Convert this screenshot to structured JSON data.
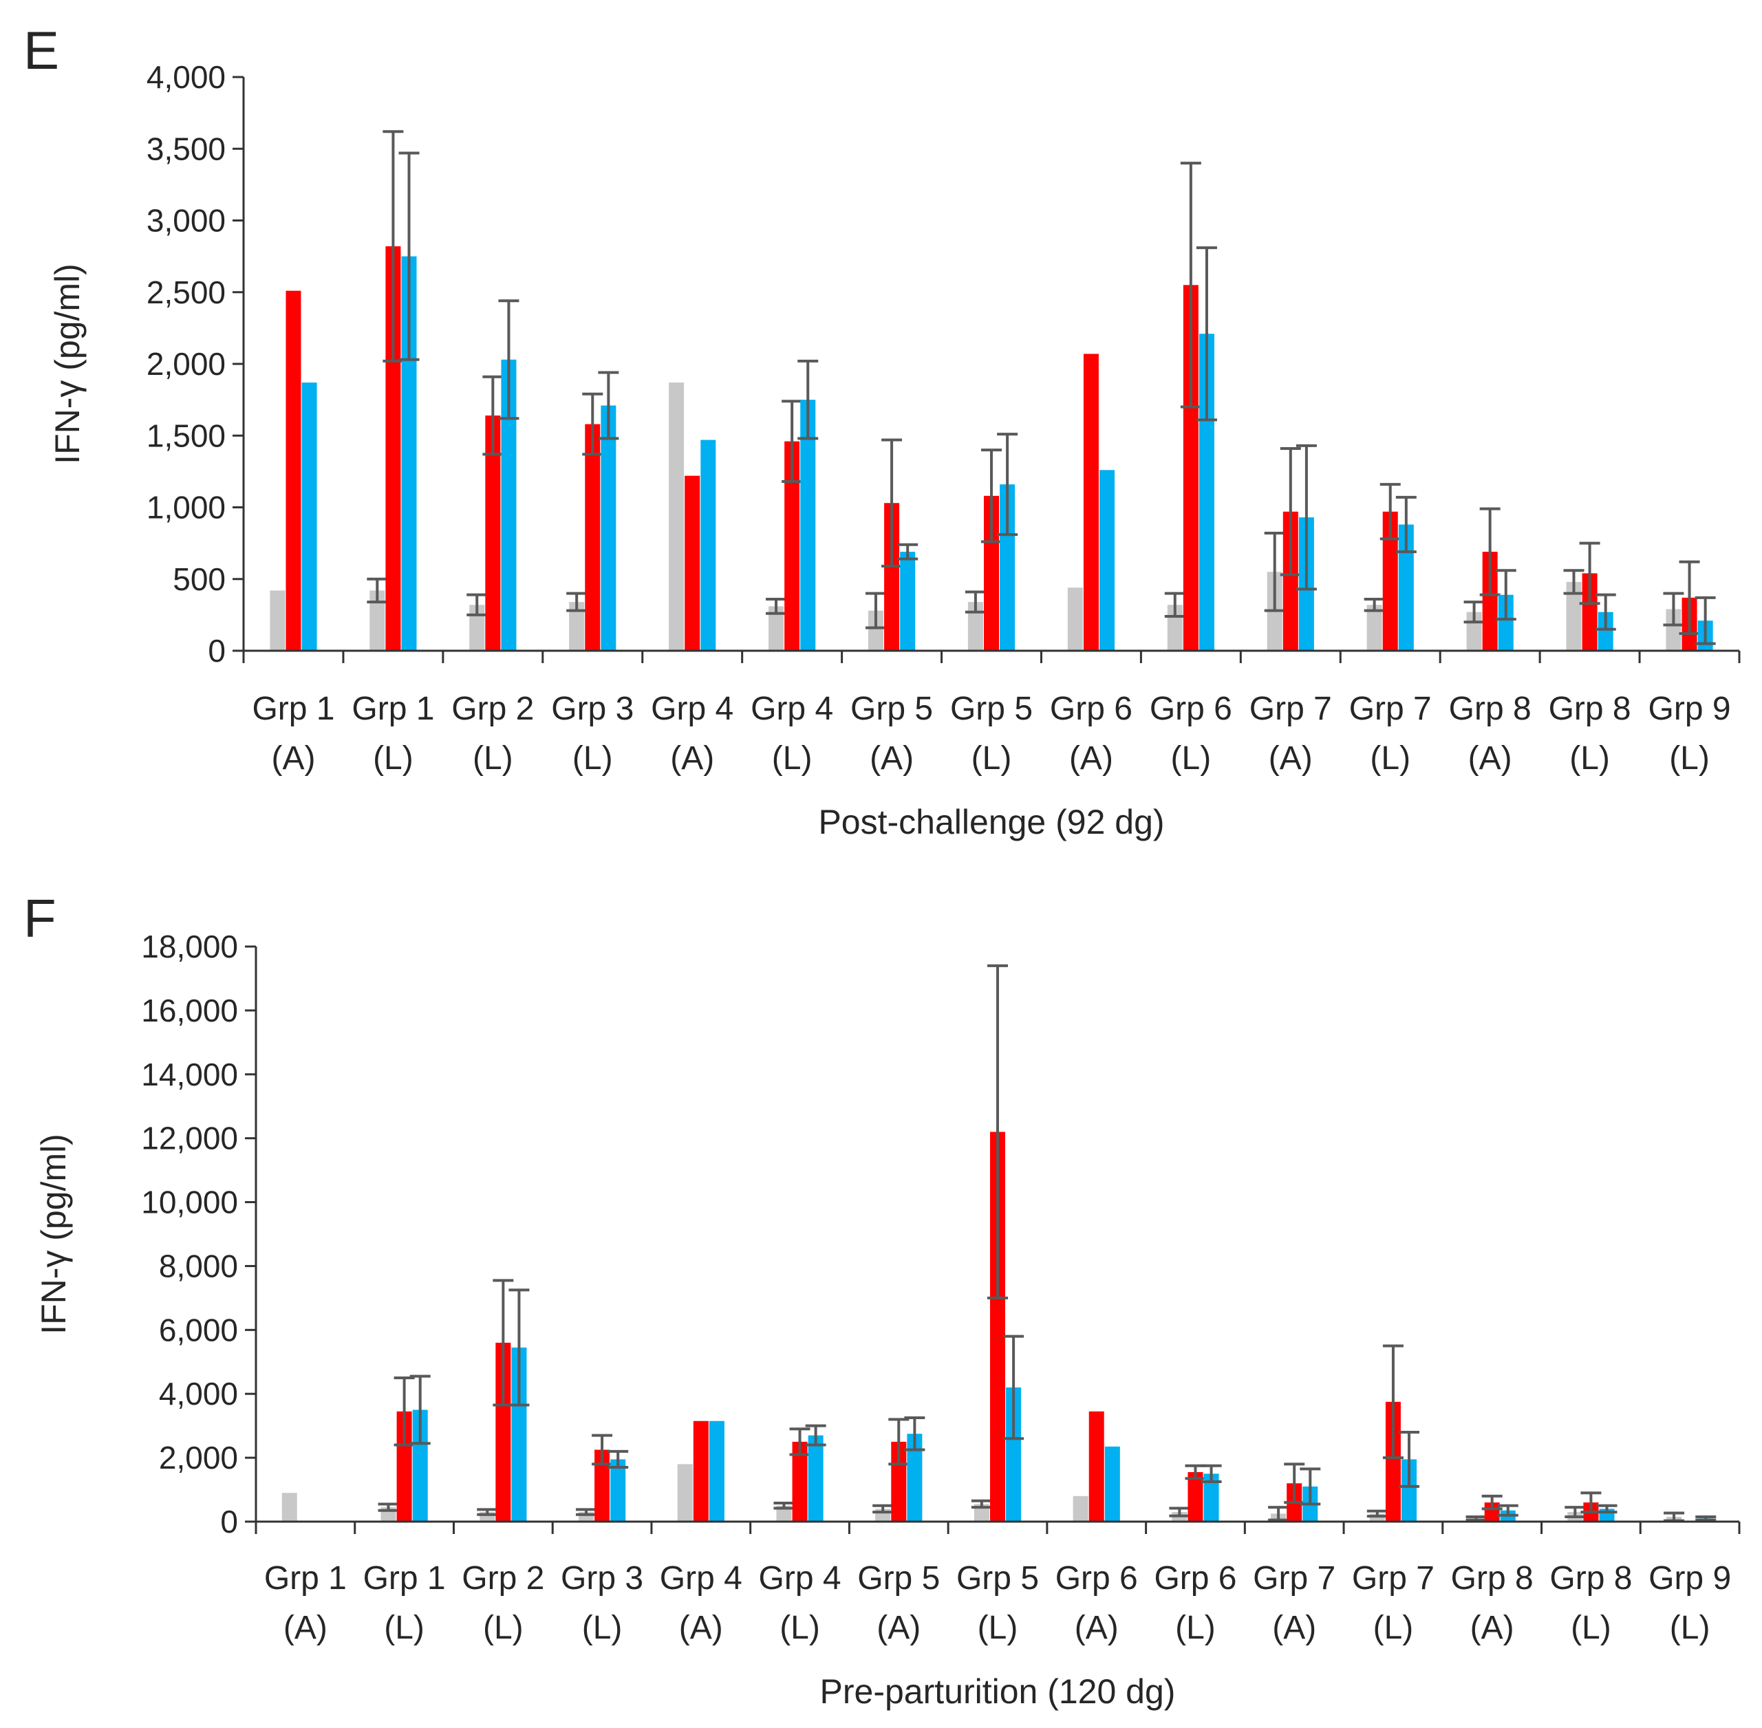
{
  "colors": {
    "gray": "#c8c8c8",
    "red": "#ff0000",
    "blue": "#00b0f0",
    "axis": "#333333",
    "err": "#595959"
  },
  "chart_data": [
    {
      "panel": "E",
      "type": "bar",
      "title": "",
      "xlabel": "Post-challenge (92 dg)",
      "ylabel": "IFN-γ (pg/ml)",
      "ylim": [
        0,
        4000
      ],
      "yticks": [
        0,
        500,
        1000,
        1500,
        2000,
        2500,
        3000,
        3500,
        4000
      ],
      "ytick_labels": [
        "0",
        "500",
        "1,000",
        "1,500",
        "2,000",
        "2,500",
        "3,000",
        "3,500",
        "4,000"
      ],
      "categories": [
        {
          "grp": "Grp 1",
          "sub": "(A)"
        },
        {
          "grp": "Grp 1",
          "sub": "(L)"
        },
        {
          "grp": "Grp 2",
          "sub": "(L)"
        },
        {
          "grp": "Grp 3",
          "sub": "(L)"
        },
        {
          "grp": "Grp 4",
          "sub": "(A)"
        },
        {
          "grp": "Grp 4",
          "sub": "(L)"
        },
        {
          "grp": "Grp 5",
          "sub": "(A)"
        },
        {
          "grp": "Grp 5",
          "sub": "(L)"
        },
        {
          "grp": "Grp 6",
          "sub": "(A)"
        },
        {
          "grp": "Grp 6",
          "sub": "(L)"
        },
        {
          "grp": "Grp 7",
          "sub": "(A)"
        },
        {
          "grp": "Grp 7",
          "sub": "(L)"
        },
        {
          "grp": "Grp 8",
          "sub": "(A)"
        },
        {
          "grp": "Grp 8",
          "sub": "(L)"
        },
        {
          "grp": "Grp 9",
          "sub": "(L)"
        }
      ],
      "series": [
        {
          "name": "gray",
          "color": "#c8c8c8",
          "values": [
            420,
            420,
            320,
            340,
            1870,
            310,
            280,
            340,
            440,
            320,
            550,
            320,
            270,
            480,
            290
          ],
          "errors": [
            null,
            80,
            70,
            60,
            null,
            50,
            120,
            70,
            null,
            80,
            270,
            40,
            70,
            80,
            110
          ]
        },
        {
          "name": "red",
          "color": "#ff0000",
          "values": [
            2510,
            2820,
            1640,
            1580,
            1220,
            1460,
            1030,
            1080,
            2070,
            2550,
            970,
            970,
            690,
            540,
            370
          ],
          "errors": [
            null,
            800,
            270,
            210,
            null,
            280,
            440,
            320,
            null,
            850,
            440,
            190,
            300,
            210,
            250
          ]
        },
        {
          "name": "blue",
          "color": "#00b0f0",
          "values": [
            1870,
            2750,
            2030,
            1710,
            1470,
            1750,
            690,
            1160,
            1260,
            2210,
            930,
            880,
            390,
            270,
            210
          ],
          "errors": [
            null,
            720,
            410,
            230,
            null,
            270,
            50,
            350,
            null,
            600,
            500,
            190,
            170,
            120,
            160
          ]
        }
      ]
    },
    {
      "panel": "F",
      "type": "bar",
      "title": "",
      "xlabel": "Pre-parturition (120 dg)",
      "ylabel": "IFN-γ (pg/ml)",
      "ylim": [
        0,
        18000
      ],
      "yticks": [
        0,
        2000,
        4000,
        6000,
        8000,
        10000,
        12000,
        14000,
        16000,
        18000
      ],
      "ytick_labels": [
        "0",
        "2,000",
        "4,000",
        "6,000",
        "8,000",
        "10,000",
        "12,000",
        "14,000",
        "16,000",
        "18,000"
      ],
      "categories": [
        {
          "grp": "Grp 1",
          "sub": "(A)"
        },
        {
          "grp": "Grp 1",
          "sub": "(L)"
        },
        {
          "grp": "Grp 2",
          "sub": "(L)"
        },
        {
          "grp": "Grp 3",
          "sub": "(L)"
        },
        {
          "grp": "Grp 4",
          "sub": "(A)"
        },
        {
          "grp": "Grp 4",
          "sub": "(L)"
        },
        {
          "grp": "Grp 5",
          "sub": "(A)"
        },
        {
          "grp": "Grp 5",
          "sub": "(L)"
        },
        {
          "grp": "Grp 6",
          "sub": "(A)"
        },
        {
          "grp": "Grp 6",
          "sub": "(L)"
        },
        {
          "grp": "Grp 7",
          "sub": "(A)"
        },
        {
          "grp": "Grp 7",
          "sub": "(L)"
        },
        {
          "grp": "Grp 8",
          "sub": "(A)"
        },
        {
          "grp": "Grp 8",
          "sub": "(L)"
        },
        {
          "grp": "Grp 9",
          "sub": "(L)"
        }
      ],
      "series": [
        {
          "name": "gray",
          "color": "#c8c8c8",
          "values": [
            900,
            450,
            300,
            300,
            1800,
            500,
            400,
            550,
            800,
            300,
            250,
            250,
            100,
            300,
            150
          ],
          "errors": [
            null,
            100,
            80,
            80,
            null,
            80,
            100,
            100,
            null,
            120,
            200,
            80,
            50,
            150,
            120
          ]
        },
        {
          "name": "red",
          "color": "#ff0000",
          "values": [
            0,
            3450,
            5600,
            2250,
            3150,
            2500,
            2500,
            12200,
            3450,
            1550,
            1200,
            3750,
            600,
            600,
            0
          ],
          "errors": [
            null,
            1050,
            1950,
            450,
            null,
            400,
            700,
            5200,
            null,
            200,
            600,
            1750,
            200,
            300,
            null
          ]
        },
        {
          "name": "blue",
          "color": "#00b0f0",
          "values": [
            0,
            3500,
            5450,
            1950,
            3150,
            2700,
            2750,
            4200,
            2350,
            1500,
            1100,
            1950,
            350,
            400,
            100
          ],
          "errors": [
            null,
            1050,
            1800,
            250,
            null,
            300,
            500,
            1600,
            null,
            250,
            550,
            850,
            150,
            100,
            50
          ]
        }
      ]
    }
  ]
}
